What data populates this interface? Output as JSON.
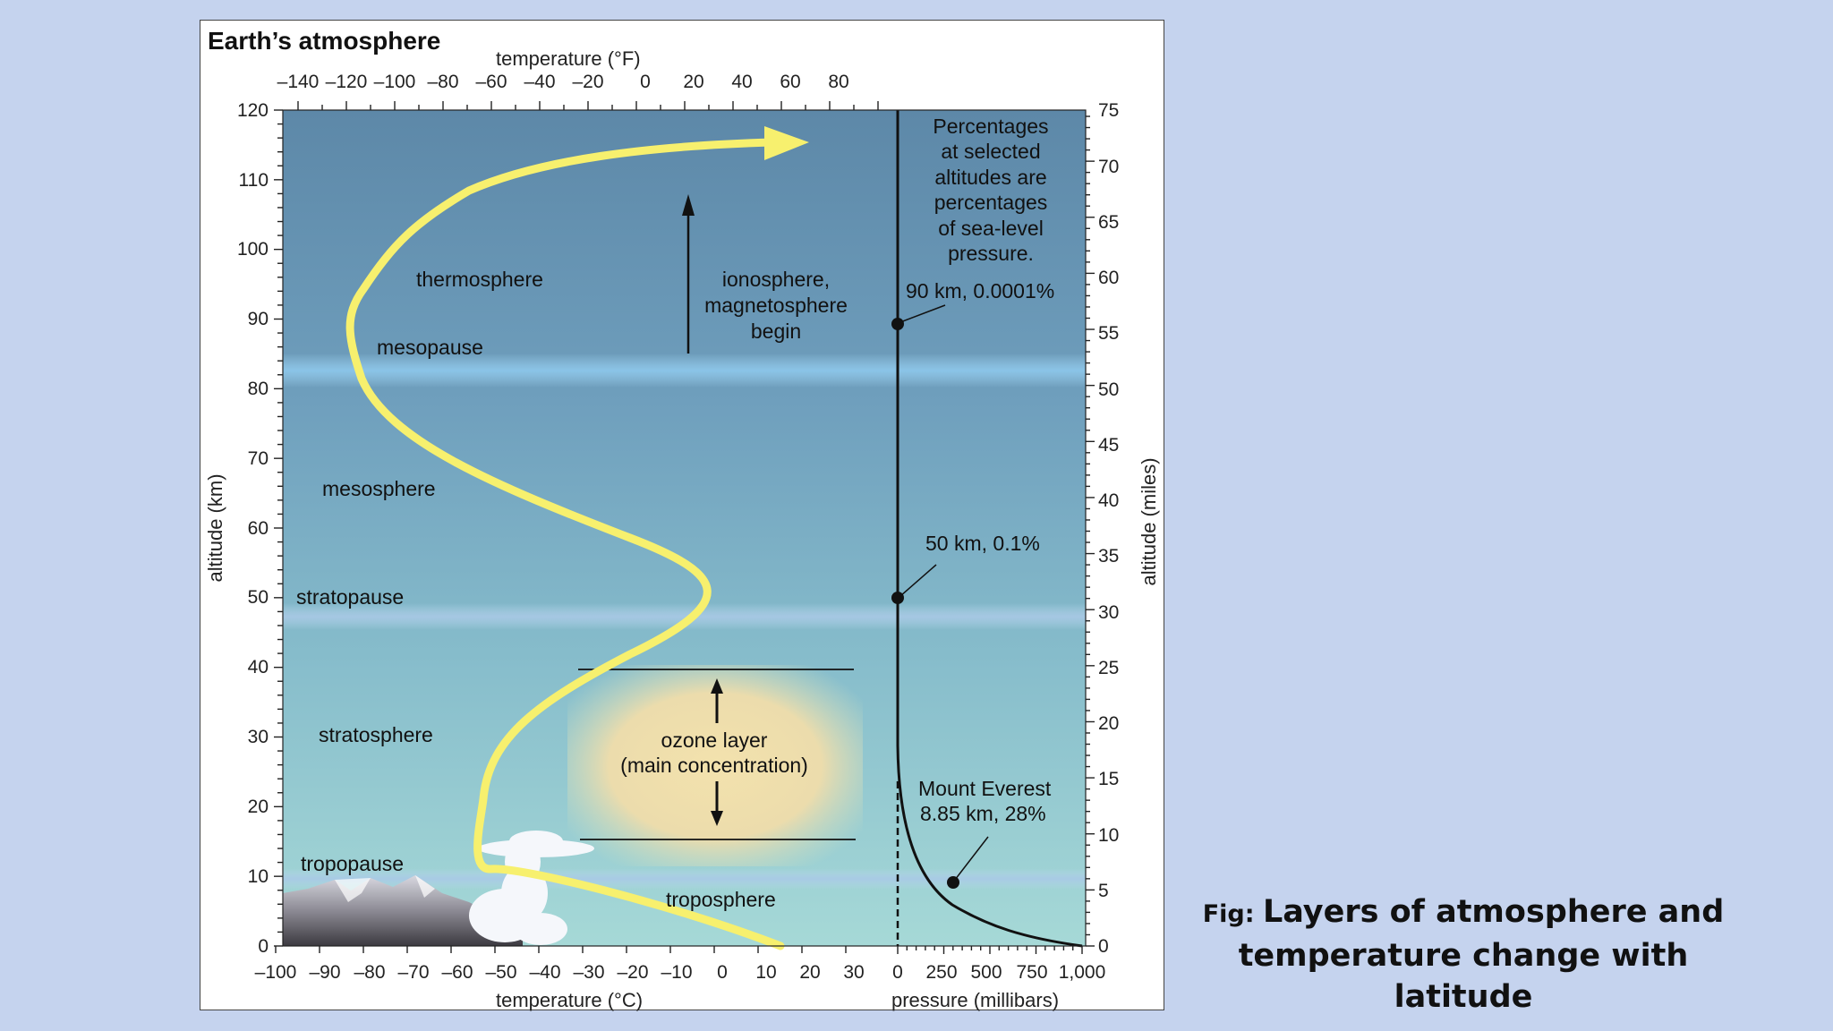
{
  "figure": {
    "title": "Earth’s atmosphere",
    "axis_top_label": "temperature (°F)",
    "axis_bottom_temp_label": "temperature (°C)",
    "axis_bottom_pressure_label": "pressure (millibars)",
    "axis_left_label": "altitude (km)",
    "axis_right_label": "altitude (miles)",
    "ticks_f": [
      "–140",
      "–120",
      "–100",
      "–80",
      "–60",
      "–40",
      "–20",
      "0",
      "20",
      "40",
      "60",
      "80"
    ],
    "ticks_c": [
      "–100",
      "–90",
      "–80",
      "–70",
      "–60",
      "–50",
      "–40",
      "–30",
      "–20",
      "–10",
      "0",
      "10",
      "20",
      "30"
    ],
    "ticks_pressure": [
      "0",
      "250",
      "500",
      "750",
      "1,000"
    ],
    "ticks_km": [
      "0",
      "10",
      "20",
      "30",
      "40",
      "50",
      "60",
      "70",
      "80",
      "90",
      "100",
      "110",
      "120"
    ],
    "ticks_miles": [
      "0",
      "5",
      "10",
      "15",
      "20",
      "25",
      "30",
      "35",
      "40",
      "45",
      "50",
      "55",
      "60",
      "65",
      "70",
      "75"
    ],
    "layers": {
      "thermosphere": "thermosphere",
      "mesopause": "mesopause",
      "mesosphere": "mesosphere",
      "stratopause": "stratopause",
      "stratosphere": "stratosphere",
      "tropopause": "tropopause",
      "troposphere": "troposphere"
    },
    "ionosphere_lines": [
      "ionosphere,",
      "magnetosphere",
      "begin"
    ],
    "ozone_lines": [
      "ozone layer",
      "(main concentration)"
    ],
    "note_lines": [
      "Percentages",
      "at selected",
      "altitudes are",
      "percentages",
      "of sea-level",
      "pressure."
    ],
    "pressure_labels": {
      "p90": "90 km, 0.0001%",
      "p50": "50 km, 0.1%",
      "everest_1": "Mount Everest",
      "everest_2": "8.85 km, 28%"
    },
    "colors": {
      "sky_top": "#5d88a8",
      "sky_bottom": "#a6d9d7",
      "curve": "#f7f06e",
      "band": "#8fc4e6"
    }
  },
  "caption": {
    "prefix": "Fig: ",
    "text": "Layers of atmosphere and temperature change with latitude"
  }
}
